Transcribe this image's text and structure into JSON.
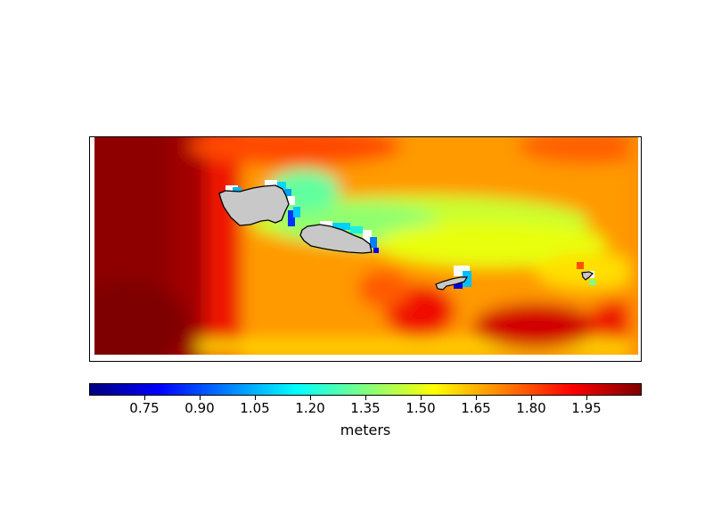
{
  "colorbar": {
    "unit_label": "meters",
    "colormap": "jet",
    "min": 0.6,
    "max": 2.1,
    "ticks": [
      0.75,
      0.9,
      1.05,
      1.2,
      1.35,
      1.5,
      1.65,
      1.8,
      1.95
    ],
    "tick_labels": [
      "0.75",
      "0.90",
      "1.05",
      "1.20",
      "1.35",
      "1.50",
      "1.65",
      "1.80",
      "1.95"
    ]
  },
  "map": {
    "land_color": "#c8c8c8",
    "coastline_color": "#000000",
    "islands": [
      "savaii",
      "upolu",
      "tutuila",
      "aunuu"
    ]
  }
}
